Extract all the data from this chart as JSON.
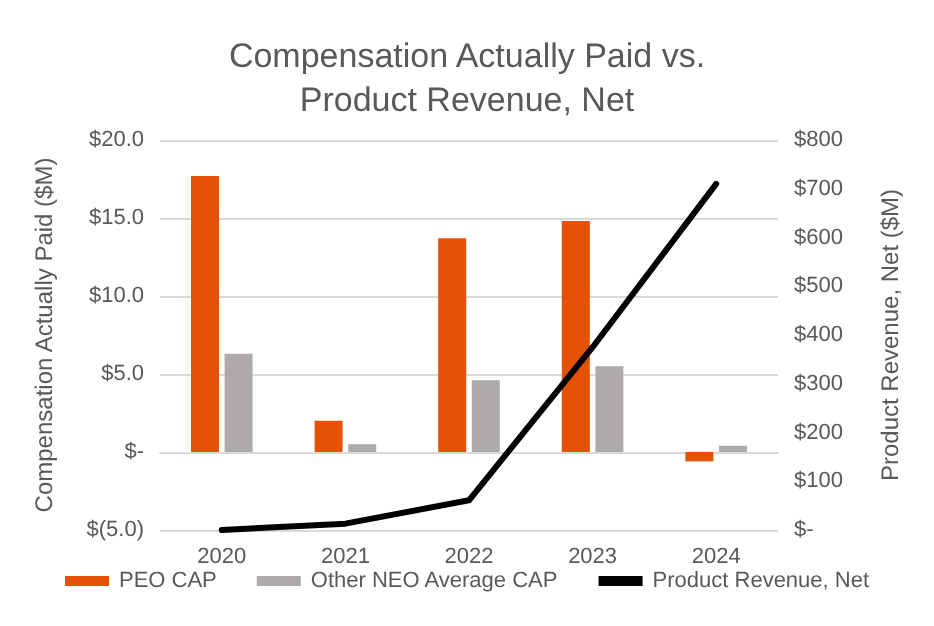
{
  "chart_data": {
    "type": "bar",
    "title": "Compensation Actually Paid vs.\nProduct Revenue, Net",
    "ylabel": "Compensation Actually Paid ($M)",
    "y2label": "Product Revenue, Net ($M)",
    "categories": [
      "2020",
      "2021",
      "2022",
      "2023",
      "2024"
    ],
    "series": [
      {
        "name": "PEO CAP",
        "color": "#e35205",
        "values": [
          17.7,
          2.0,
          13.7,
          14.8,
          -0.6
        ]
      },
      {
        "name": "Other NEO Average CAP",
        "color": "#aeaaaa",
        "values": [
          6.3,
          0.5,
          4.6,
          5.5,
          0.4
        ]
      },
      {
        "name": "Product Revenue, Net",
        "type": "line",
        "axis": "y2",
        "color": "#000000",
        "values": [
          0,
          13,
          61,
          375,
          710
        ]
      }
    ],
    "ylim": [
      -5,
      20
    ],
    "yticks": [
      {
        "value": -5,
        "label": "$(5.0)"
      },
      {
        "value": 0,
        "label": "$-"
      },
      {
        "value": 5,
        "label": "$5.0"
      },
      {
        "value": 10,
        "label": "$10.0"
      },
      {
        "value": 15,
        "label": "$15.0"
      },
      {
        "value": 20,
        "label": "$20.0"
      }
    ],
    "y2lim": [
      0,
      800
    ],
    "y2ticks": [
      {
        "value": 0,
        "label": "$-"
      },
      {
        "value": 100,
        "label": "$100"
      },
      {
        "value": 200,
        "label": "$200"
      },
      {
        "value": 300,
        "label": "$300"
      },
      {
        "value": 400,
        "label": "$400"
      },
      {
        "value": 500,
        "label": "$500"
      },
      {
        "value": 600,
        "label": "$600"
      },
      {
        "value": 700,
        "label": "$700"
      },
      {
        "value": 800,
        "label": "$800"
      }
    ],
    "grid": "y",
    "legend": "bottom",
    "marker": "none",
    "line_style": "solid"
  }
}
